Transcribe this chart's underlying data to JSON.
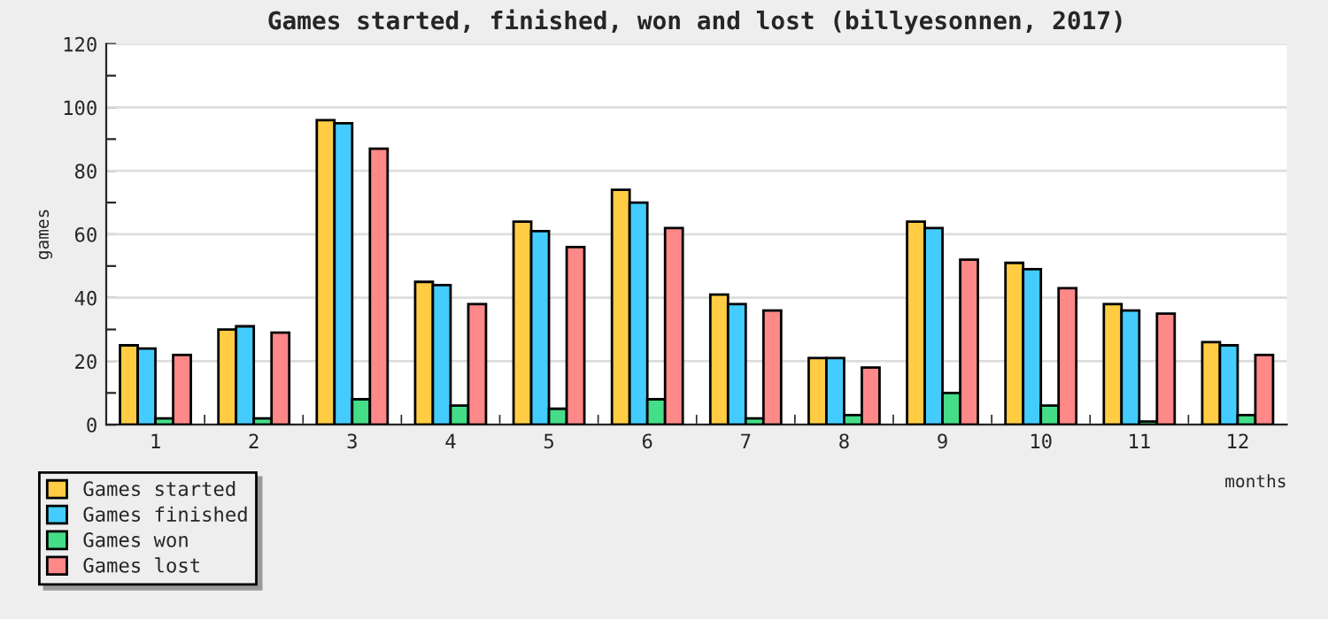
{
  "chart_data": {
    "type": "bar",
    "title": "Games started, finished, won and lost (billyesonnen, 2017)",
    "xlabel": "months",
    "ylabel": "games",
    "categories": [
      "1",
      "2",
      "3",
      "4",
      "5",
      "6",
      "7",
      "8",
      "9",
      "10",
      "11",
      "12"
    ],
    "series": [
      {
        "name": "Games started",
        "color": "#ffcc44",
        "values": [
          25,
          30,
          96,
          45,
          64,
          74,
          41,
          21,
          64,
          51,
          38,
          26
        ]
      },
      {
        "name": "Games finished",
        "color": "#44ccff",
        "values": [
          24,
          31,
          95,
          44,
          61,
          70,
          38,
          21,
          62,
          49,
          36,
          25
        ]
      },
      {
        "name": "Games won",
        "color": "#44dd88",
        "values": [
          2,
          2,
          8,
          6,
          5,
          8,
          2,
          3,
          10,
          6,
          1,
          3
        ]
      },
      {
        "name": "Games lost",
        "color": "#ff8888",
        "values": [
          22,
          29,
          87,
          38,
          56,
          62,
          36,
          18,
          52,
          43,
          35,
          22
        ]
      }
    ],
    "ylim": [
      0,
      120
    ],
    "yticks": [
      0,
      {
        "value": 10,
        "label": null
      },
      20,
      {
        "value": 30,
        "label": null
      },
      40,
      {
        "value": 50,
        "label": null
      },
      60,
      {
        "value": 70,
        "label": null
      },
      80,
      {
        "value": 90,
        "label": null
      },
      100,
      {
        "value": 110,
        "label": null
      },
      120
    ],
    "grid": "y",
    "legend": "bottom left"
  }
}
